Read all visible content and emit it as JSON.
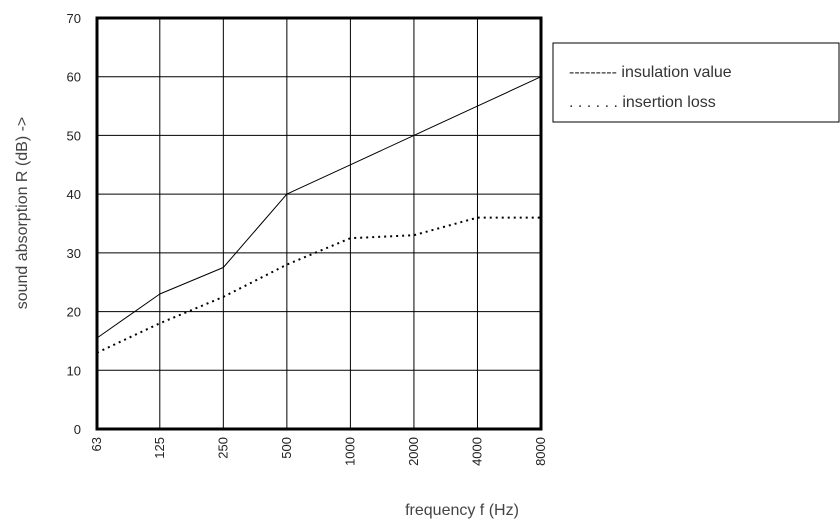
{
  "chart_data": {
    "type": "line",
    "x": [
      63,
      125,
      250,
      500,
      1000,
      2000,
      4000,
      8000
    ],
    "xticks": [
      "63",
      "125",
      "250",
      "500",
      "1000",
      "2000",
      "4000",
      "8000"
    ],
    "xscale": "log",
    "xlabel": "frequency f (Hz)",
    "ylabel": "sound absorption R (dB) ->",
    "ylim": [
      0,
      70
    ],
    "yticks": [
      0,
      10,
      20,
      30,
      40,
      50,
      60,
      70
    ],
    "grid": true,
    "legend_position": "top-right",
    "series": [
      {
        "name": "insulation value",
        "legend_label": "--------- insulation value",
        "line_style": "solid",
        "color": "#000000",
        "values": [
          15.5,
          23,
          27.5,
          40,
          45,
          50,
          55,
          60
        ]
      },
      {
        "name": "insertion loss",
        "legend_label": ". . . . . . insertion loss",
        "line_style": "dotted",
        "color": "#000000",
        "values": [
          13,
          18,
          22.5,
          28,
          32.5,
          33,
          36,
          36
        ]
      }
    ]
  }
}
